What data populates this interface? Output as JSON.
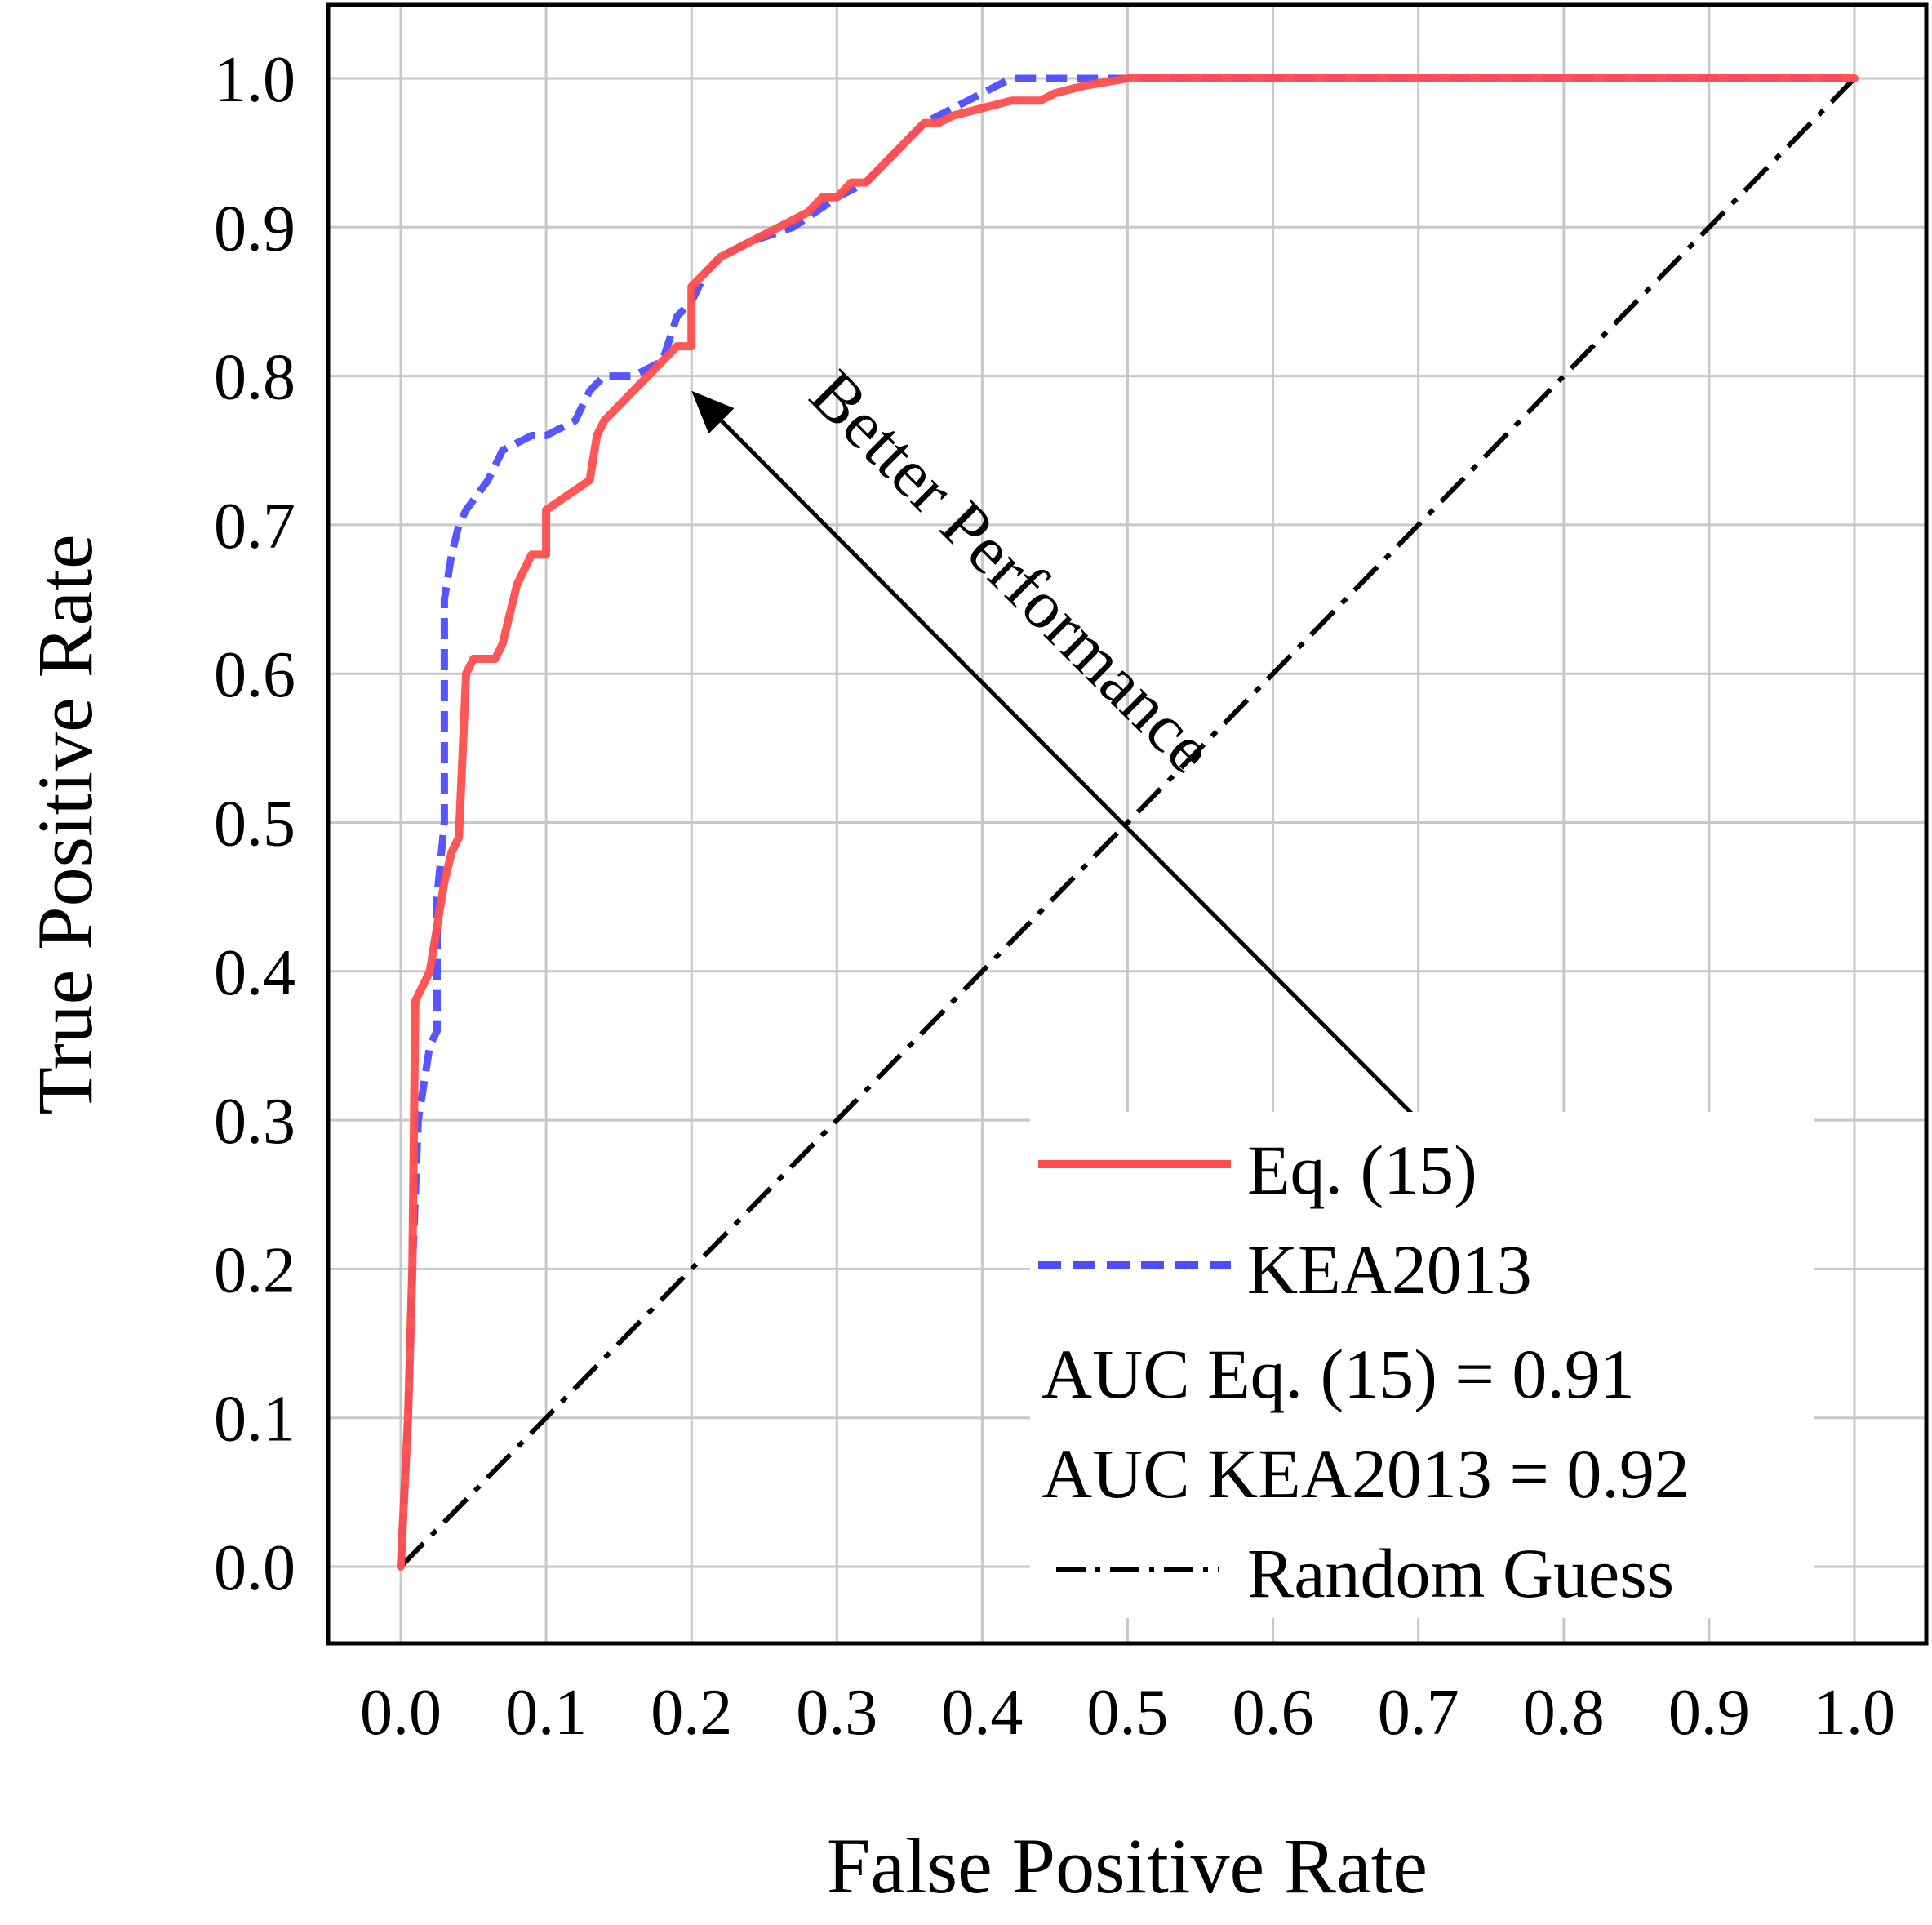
{
  "chart_data": {
    "type": "line",
    "title": "",
    "xlabel": "False Positive Rate",
    "ylabel": "True Positive Rate",
    "xlim": [
      -0.05,
      1.05
    ],
    "ylim": [
      -0.05,
      1.05
    ],
    "xticks": [
      "0.0",
      "0.1",
      "0.2",
      "0.3",
      "0.4",
      "0.5",
      "0.6",
      "0.7",
      "0.8",
      "0.9",
      "1.0"
    ],
    "yticks": [
      "0.0",
      "0.1",
      "0.2",
      "0.3",
      "0.4",
      "0.5",
      "0.6",
      "0.7",
      "0.8",
      "0.9",
      "1.0"
    ],
    "grid": true,
    "legend_position": "bottom-right",
    "series": [
      {
        "name": "Eq. (15)",
        "color": "#ff4d4d",
        "style": "solid",
        "x": [
          0,
          0.005,
          0.008,
          0.01,
          0.015,
          0.02,
          0.025,
          0.03,
          0.035,
          0.04,
          0.04,
          0.045,
          0.05,
          0.05,
          0.065,
          0.07,
          0.08,
          0.085,
          0.09,
          0.1,
          0.1,
          0.115,
          0.13,
          0.135,
          0.14,
          0.15,
          0.16,
          0.17,
          0.18,
          0.19,
          0.2,
          0.2,
          0.21,
          0.22,
          0.24,
          0.26,
          0.28,
          0.29,
          0.3,
          0.3,
          0.31,
          0.32,
          0.33,
          0.34,
          0.35,
          0.36,
          0.37,
          0.38,
          0.4,
          0.42,
          0.44,
          0.45,
          0.47,
          0.5,
          0.55,
          0.6,
          0.7,
          0.75,
          0.8,
          0.9,
          1.0
        ],
        "y": [
          0.0,
          0.1,
          0.2,
          0.38,
          0.39,
          0.4,
          0.43,
          0.46,
          0.48,
          0.49,
          0.49,
          0.6,
          0.61,
          0.61,
          0.61,
          0.62,
          0.66,
          0.67,
          0.68,
          0.68,
          0.71,
          0.72,
          0.73,
          0.76,
          0.77,
          0.78,
          0.79,
          0.8,
          0.81,
          0.82,
          0.82,
          0.86,
          0.87,
          0.88,
          0.89,
          0.9,
          0.91,
          0.92,
          0.92,
          0.92,
          0.93,
          0.93,
          0.94,
          0.95,
          0.96,
          0.97,
          0.97,
          0.975,
          0.98,
          0.985,
          0.985,
          0.99,
          0.995,
          1.0,
          1.0,
          1.0,
          1.0,
          1.0,
          1.0,
          1.0,
          1.0
        ]
      },
      {
        "name": "KEA2013",
        "color": "#4d4dff",
        "style": "dashed",
        "x": [
          0,
          0.005,
          0.008,
          0.012,
          0.02,
          0.025,
          0.025,
          0.03,
          0.03,
          0.035,
          0.04,
          0.045,
          0.06,
          0.07,
          0.09,
          0.1,
          0.12,
          0.13,
          0.14,
          0.16,
          0.18,
          0.19,
          0.2,
          0.21,
          0.22,
          0.24,
          0.27,
          0.3,
          0.32,
          0.34,
          0.36,
          0.38,
          0.4,
          0.42,
          0.44,
          0.5,
          0.6,
          0.7,
          0.8,
          0.9,
          1.0
        ],
        "y": [
          0.0,
          0.1,
          0.2,
          0.3,
          0.35,
          0.36,
          0.45,
          0.5,
          0.65,
          0.68,
          0.7,
          0.71,
          0.73,
          0.75,
          0.76,
          0.76,
          0.77,
          0.79,
          0.8,
          0.8,
          0.81,
          0.84,
          0.85,
          0.87,
          0.88,
          0.89,
          0.9,
          0.92,
          0.93,
          0.95,
          0.97,
          0.98,
          0.99,
          1.0,
          1.0,
          1.0,
          1.0,
          1.0,
          1.0,
          1.0,
          1.0
        ]
      },
      {
        "name": "Random Guess",
        "color": "#000000",
        "style": "dash-dot",
        "x": [
          0,
          1
        ],
        "y": [
          0,
          1
        ]
      }
    ],
    "annotations": [
      {
        "text": "Better Performance",
        "arrow_from": [
          0.7,
          0.3
        ],
        "arrow_to": [
          0.2,
          0.79
        ]
      },
      {
        "text": "AUC Eq. (15) = 0.91"
      },
      {
        "text": "AUC KEA2013 = 0.92"
      }
    ]
  },
  "legend": {
    "items": [
      "Eq. (15)",
      "KEA2013"
    ],
    "auc_lines": [
      "AUC Eq. (15) = 0.91",
      "AUC KEA2013 = 0.92"
    ],
    "random_label": "Random Guess"
  }
}
